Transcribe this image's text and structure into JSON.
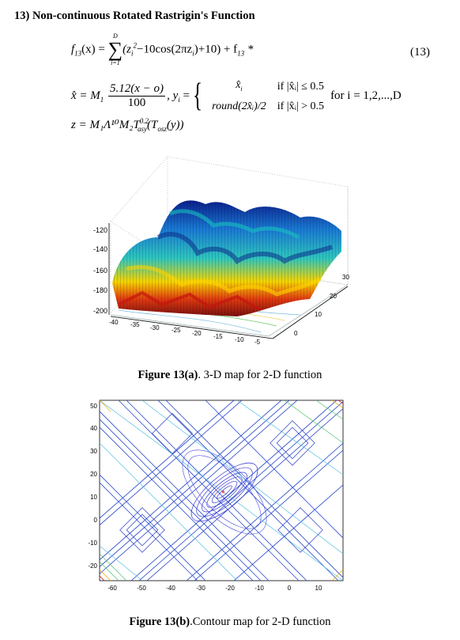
{
  "heading": "13) Non-continuous Rotated Rastrigin's Function",
  "equation": {
    "f_lhs": "f",
    "f_sub": "13",
    "f_arg": "(x) =",
    "sum_upper": "D",
    "sum_lower": "i=1",
    "sum_body": "(z",
    "sum_body_sub": "i",
    "sum_body_sup": "2",
    "sum_rest": "−10cos(2πz",
    "sum_rest_sub": "i",
    "sum_tail": ")+10) + f",
    "tail_sub": "13",
    "tail_star": "*",
    "number": "(13)",
    "xhat_lhs": "x̂ = M",
    "xhat_sub": "1",
    "frac_num": "5.12(x − o)",
    "frac_den": "100",
    "y_lhs": ", y",
    "y_sub": "i",
    "case1_val": "x̂",
    "case1_sub": "i",
    "case1_cond": "if |x̂ᵢ| ≤ 0.5",
    "case2_val": "round(2x̂ᵢ)/2",
    "case2_cond": "if |x̂ᵢ| > 0.5",
    "for_clause": "for i = 1,2,...,D",
    "z_line": "z = M₁Λ¹⁰M₂T",
    "z_sup": "0.2",
    "z_sub": "asy",
    "z_tail": "(T",
    "z_tail_sub": "osz",
    "z_end": "(y))"
  },
  "figure_a": {
    "caption_bold": "Figure 13(a)",
    "caption_rest": ". 3-D map for 2-D function",
    "z_ticks": [
      "-120",
      "-140",
      "-160",
      "-180",
      "-200"
    ],
    "x_ticks": [
      "-40",
      "-35",
      "-30",
      "-25",
      "-20",
      "-15",
      "-10",
      "-5"
    ],
    "y_ticks": [
      "0",
      "10",
      "20",
      "30"
    ]
  },
  "figure_b": {
    "caption_bold": "Figure 13(b)",
    "caption_rest": ".Contour map for 2-D function",
    "y_ticks": [
      "50",
      "40",
      "30",
      "20",
      "10",
      "0",
      "-10",
      "-20"
    ],
    "x_ticks": [
      "-60",
      "-50",
      "-40",
      "-30",
      "-20",
      "-10",
      "0",
      "10"
    ]
  }
}
